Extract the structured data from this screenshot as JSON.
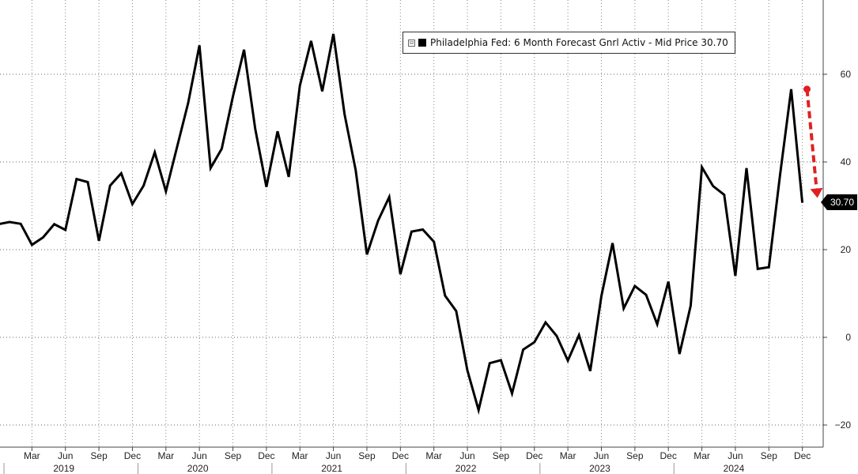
{
  "chart_data": {
    "type": "line",
    "series": [
      {
        "name": "Philadelphia Fed: 6 Month Forecast Gnrl Activ - Mid Price",
        "color": "#000000",
        "last_value": "30.70",
        "x": [
          "2018-12",
          "2019-01",
          "2019-02",
          "2019-03",
          "2019-04",
          "2019-05",
          "2019-06",
          "2019-07",
          "2019-08",
          "2019-09",
          "2019-10",
          "2019-11",
          "2019-12",
          "2020-01",
          "2020-02",
          "2020-03",
          "2020-04",
          "2020-05",
          "2020-06",
          "2020-07",
          "2020-08",
          "2020-09",
          "2020-10",
          "2020-11",
          "2020-12",
          "2021-01",
          "2021-02",
          "2021-03",
          "2021-04",
          "2021-05",
          "2021-06",
          "2021-07",
          "2021-08",
          "2021-09",
          "2021-10",
          "2021-11",
          "2021-12",
          "2022-01",
          "2022-02",
          "2022-03",
          "2022-04",
          "2022-05",
          "2022-06",
          "2022-07",
          "2022-08",
          "2022-09",
          "2022-10",
          "2022-11",
          "2022-12",
          "2023-01",
          "2023-02",
          "2023-03",
          "2023-04",
          "2023-05",
          "2023-06",
          "2023-07",
          "2023-08",
          "2023-09",
          "2023-10",
          "2023-11",
          "2023-12",
          "2024-01",
          "2024-02",
          "2024-03",
          "2024-04",
          "2024-05",
          "2024-06",
          "2024-07",
          "2024-08",
          "2024-09",
          "2024-10",
          "2024-11",
          "2024-12"
        ],
        "values": [
          25.8,
          26.3,
          25.9,
          21.1,
          22.8,
          25.8,
          24.5,
          36.1,
          35.4,
          22.0,
          34.6,
          37.4,
          30.4,
          34.6,
          42.2,
          33.3,
          43.4,
          53.5,
          66.6,
          38.6,
          43.0,
          54.9,
          65.6,
          47.5,
          34.3,
          47.0,
          36.6,
          57.4,
          67.6,
          56.1,
          69.2,
          50.9,
          38.1,
          18.9,
          26.6,
          32.0,
          14.4,
          24.1,
          24.6,
          21.8,
          9.5,
          6.0,
          -7.5,
          -16.6,
          -5.9,
          -5.2,
          -12.8,
          -2.8,
          -1.1,
          3.4,
          0.3,
          -5.3,
          0.5,
          -7.7,
          9.4,
          21.5,
          6.6,
          11.7,
          9.7,
          3.0,
          12.7,
          -3.8,
          7.2,
          38.8,
          34.5,
          32.5,
          14.0,
          38.6,
          15.6,
          16.0,
          37.0,
          56.6,
          30.7
        ]
      }
    ],
    "ylim": [
      -23,
      77
    ],
    "yticks": [
      -20,
      0,
      20,
      40,
      60
    ],
    "month_ticks": [
      "Mar",
      "Jun",
      "Sep",
      "Dec",
      "Mar",
      "Jun",
      "Sep",
      "Dec",
      "Mar",
      "Jun",
      "Sep",
      "Dec",
      "Mar",
      "Jun",
      "Sep",
      "Dec",
      "Mar",
      "Jun",
      "Sep",
      "Dec",
      "Mar",
      "Jun",
      "Sep",
      "Dec"
    ],
    "years": [
      "2019",
      "2020",
      "2021",
      "2022",
      "2023",
      "2024"
    ],
    "grid": true,
    "legend_position": "top-center",
    "annotation": {
      "type": "arrow",
      "color": "#e02020",
      "style": "dashed",
      "direction": "down"
    }
  }
}
